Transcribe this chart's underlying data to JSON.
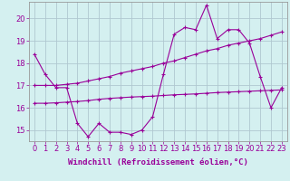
{
  "x_hours": [
    0,
    1,
    2,
    3,
    4,
    5,
    6,
    7,
    8,
    9,
    10,
    11,
    12,
    13,
    14,
    15,
    16,
    17,
    18,
    19,
    20,
    21,
    22,
    23
  ],
  "line1": [
    18.4,
    17.5,
    16.9,
    16.9,
    15.3,
    14.7,
    15.3,
    14.9,
    14.9,
    14.8,
    15.0,
    15.6,
    17.5,
    19.3,
    19.6,
    19.5,
    20.6,
    19.1,
    19.5,
    19.5,
    18.9,
    17.4,
    16.0,
    16.9
  ],
  "line2": [
    17.0,
    17.0,
    17.0,
    17.05,
    17.1,
    17.2,
    17.3,
    17.4,
    17.55,
    17.65,
    17.75,
    17.85,
    18.0,
    18.1,
    18.25,
    18.4,
    18.55,
    18.65,
    18.8,
    18.9,
    19.0,
    19.1,
    19.25,
    19.4
  ],
  "line3": [
    16.2,
    16.2,
    16.22,
    16.25,
    16.28,
    16.32,
    16.38,
    16.42,
    16.45,
    16.48,
    16.5,
    16.52,
    16.55,
    16.58,
    16.6,
    16.62,
    16.65,
    16.68,
    16.7,
    16.72,
    16.74,
    16.76,
    16.78,
    16.8
  ],
  "color": "#990099",
  "bg_color": "#d4f0f0",
  "grid_color": "#b0c8d0",
  "ylabel_values": [
    15,
    16,
    17,
    18,
    19,
    20
  ],
  "xlabel": "Windchill (Refroidissement éolien,°C)",
  "xlim": [
    -0.5,
    23.5
  ],
  "ylim": [
    14.5,
    20.75
  ],
  "label_fontsize": 6.5,
  "tick_fontsize": 6.0
}
